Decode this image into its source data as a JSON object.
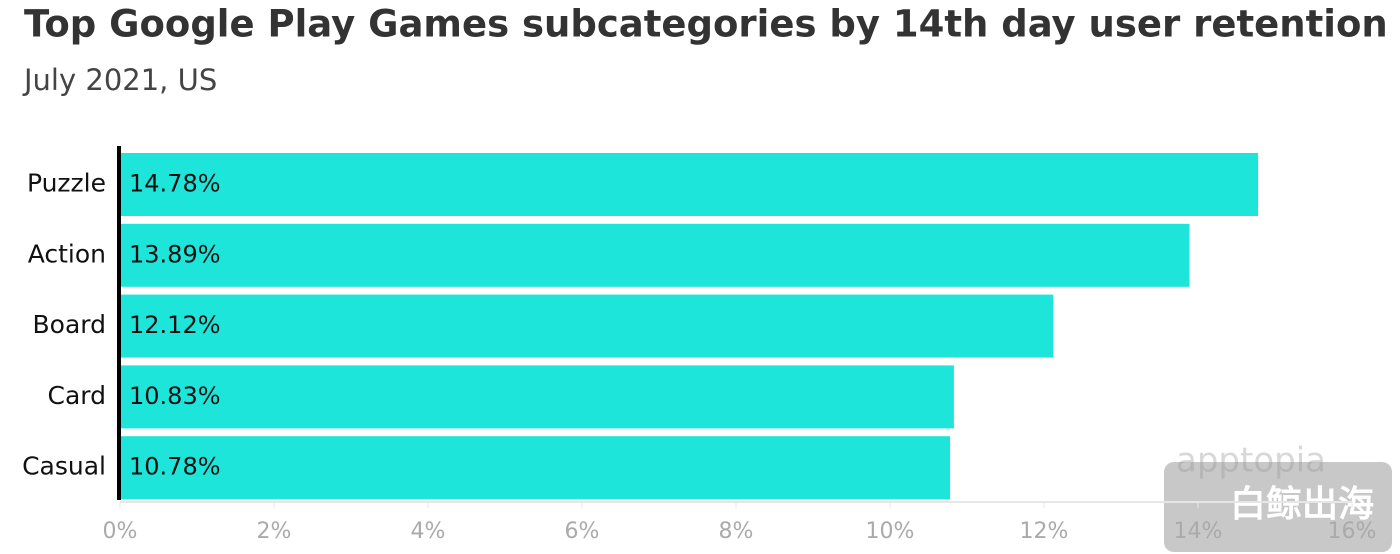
{
  "chart_data": {
    "type": "barh",
    "title": "Top Google Play Games subcategories by 14th day user retention",
    "subtitle": "July 2021, US",
    "categories": [
      "Puzzle",
      "Action",
      "Board",
      "Card",
      "Casual"
    ],
    "values": [
      14.78,
      13.89,
      12.12,
      10.83,
      10.78
    ],
    "value_labels": [
      "14.78%",
      "13.89%",
      "12.12%",
      "10.83%",
      "10.78%"
    ],
    "color": "#1de5d9",
    "xlim": [
      0,
      16
    ],
    "xticks": [
      {
        "value": 0,
        "label": "0%"
      },
      {
        "value": 2,
        "label": "2%"
      },
      {
        "value": 4,
        "label": "4%"
      },
      {
        "value": 6,
        "label": "6%"
      },
      {
        "value": 8,
        "label": "8%"
      },
      {
        "value": 10,
        "label": "10%"
      },
      {
        "value": 12,
        "label": "12%"
      },
      {
        "value": 14,
        "label": "14%"
      },
      {
        "value": 16,
        "label": "16%"
      }
    ],
    "grid": false,
    "watermarks": [
      "apptopia",
      "白鲸出海"
    ]
  }
}
